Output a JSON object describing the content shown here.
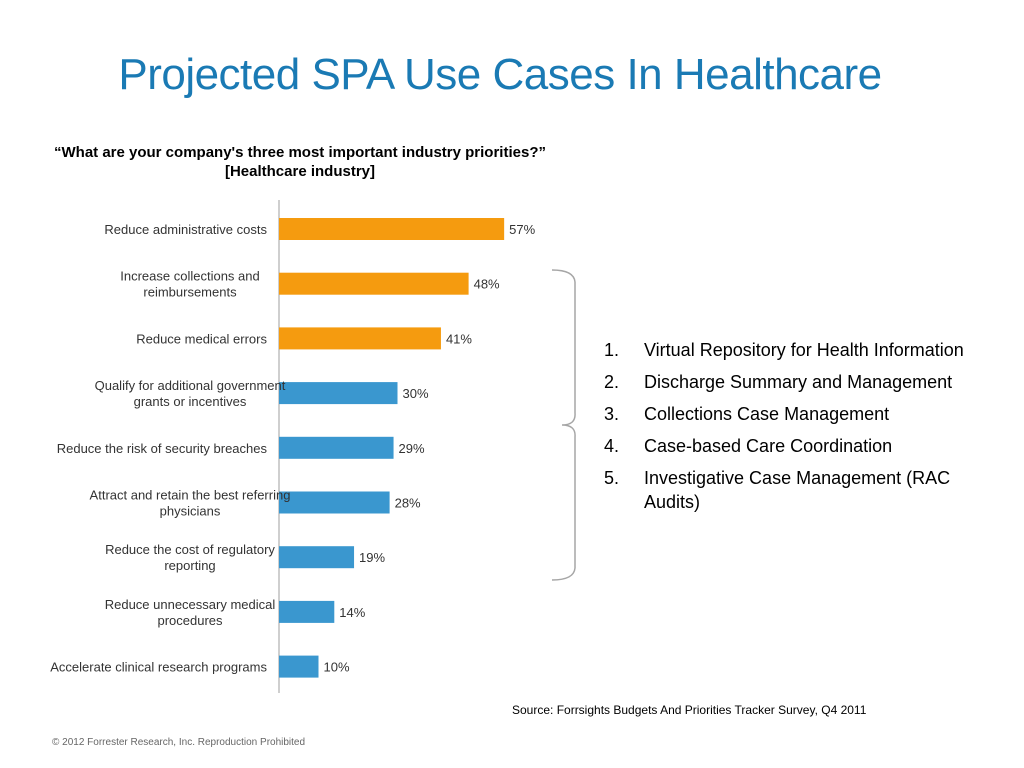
{
  "title": "Projected SPA Use Cases In Healthcare",
  "chart_data": {
    "type": "bar",
    "orientation": "horizontal",
    "title": "“What are your company's three most important industry priorities?” [Healthcare industry]",
    "categories": [
      [
        "Reduce administrative costs"
      ],
      [
        "Increase collections and",
        "reimbursements"
      ],
      [
        "Reduce medical errors"
      ],
      [
        "Qualify for additional government",
        "grants or incentives"
      ],
      [
        "Reduce the risk of security breaches"
      ],
      [
        "Attract and retain the best referring",
        "physicians"
      ],
      [
        "Reduce the cost of regulatory",
        "reporting"
      ],
      [
        "Reduce unnecessary medical",
        "procedures"
      ],
      [
        "Accelerate clinical research programs"
      ]
    ],
    "values": [
      57,
      48,
      41,
      30,
      29,
      28,
      19,
      14,
      10
    ],
    "value_labels": [
      "57%",
      "48%",
      "41%",
      "30%",
      "29%",
      "28%",
      "19%",
      "14%",
      "10%"
    ],
    "unit": "%",
    "highlight_count": 3,
    "colors": {
      "highlight": "#f59b0f",
      "default": "#3a97cf",
      "axis": "#bfbfbf"
    },
    "xlim": [
      0,
      100
    ],
    "grid": false,
    "legend": "none"
  },
  "use_cases": [
    {
      "num": "1.",
      "text": "Virtual Repository for Health Information"
    },
    {
      "num": "2.",
      "text": "Discharge Summary and Management"
    },
    {
      "num": "3.",
      "text": "Collections Case Management"
    },
    {
      "num": "4.",
      "text": "Case-based Care Coordination"
    },
    {
      "num": "5.",
      "text": "Investigative Case Management (RAC Audits)"
    }
  ],
  "source": "Source: Forrsights Budgets And Priorities Tracker Survey, Q4 2011",
  "copyright": "© 2012 Forrester Research, Inc. Reproduction Prohibited"
}
